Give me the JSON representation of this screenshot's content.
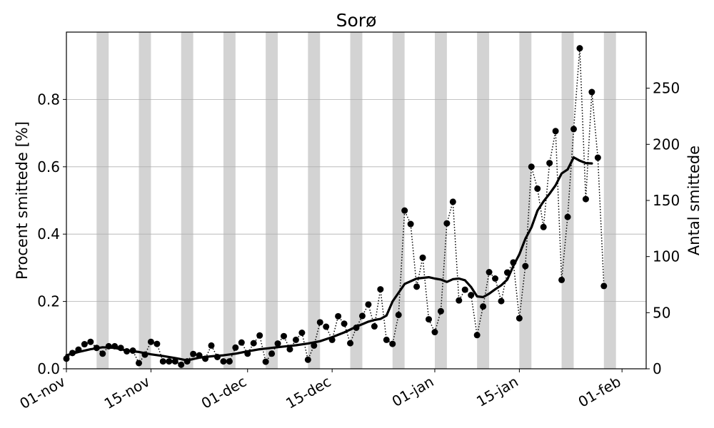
{
  "chart_data": {
    "type": "line",
    "title": "Sorø",
    "ylabel": "Procent smittede [%]",
    "y2label": "Antal smittede",
    "x_start": "2020-11-01",
    "x_end": "2021-02-05",
    "ylim": [
      0,
      1.0
    ],
    "y2lim": [
      0,
      300
    ],
    "y_ticks": [
      "0.0",
      "0.2",
      "0.4",
      "0.6",
      "0.8"
    ],
    "y2_ticks": [
      "0",
      "50",
      "100",
      "150",
      "200",
      "250"
    ],
    "x_ticks": [
      {
        "date": "2020-11-01",
        "label": "01-nov"
      },
      {
        "date": "2020-11-15",
        "label": "15-nov"
      },
      {
        "date": "2020-12-01",
        "label": "01-dec"
      },
      {
        "date": "2020-12-15",
        "label": "15-dec"
      },
      {
        "date": "2021-01-01",
        "label": "01-jan"
      },
      {
        "date": "2021-01-15",
        "label": "15-jan"
      },
      {
        "date": "2021-02-01",
        "label": "01-feb"
      }
    ],
    "weekend_bands": [
      {
        "start": "2020-11-06",
        "end": "2020-11-08"
      },
      {
        "start": "2020-11-13",
        "end": "2020-11-15"
      },
      {
        "start": "2020-11-20",
        "end": "2020-11-22"
      },
      {
        "start": "2020-11-27",
        "end": "2020-11-29"
      },
      {
        "start": "2020-12-04",
        "end": "2020-12-06"
      },
      {
        "start": "2020-12-11",
        "end": "2020-12-13"
      },
      {
        "start": "2020-12-18",
        "end": "2020-12-20"
      },
      {
        "start": "2020-12-25",
        "end": "2020-12-27"
      },
      {
        "start": "2021-01-01",
        "end": "2021-01-03"
      },
      {
        "start": "2021-01-08",
        "end": "2021-01-10"
      },
      {
        "start": "2021-01-15",
        "end": "2021-01-17"
      },
      {
        "start": "2021-01-22",
        "end": "2021-01-24"
      },
      {
        "start": "2021-01-29",
        "end": "2021-01-31"
      },
      {
        "start": "2021-02-05",
        "end": "2021-02-07"
      }
    ],
    "grid": "y",
    "series": [
      {
        "style": "dotted-markers",
        "color": "#000000",
        "x": [
          "2020-11-01",
          "2020-11-02",
          "2020-11-03",
          "2020-11-04",
          "2020-11-05",
          "2020-11-06",
          "2020-11-07",
          "2020-11-08",
          "2020-11-09",
          "2020-11-10",
          "2020-11-11",
          "2020-11-12",
          "2020-11-13",
          "2020-11-14",
          "2020-11-15",
          "2020-11-16",
          "2020-11-17",
          "2020-11-18",
          "2020-11-19",
          "2020-11-20",
          "2020-11-21",
          "2020-11-22",
          "2020-11-23",
          "2020-11-24",
          "2020-11-25",
          "2020-11-26",
          "2020-11-27",
          "2020-11-28",
          "2020-11-29",
          "2020-11-30",
          "2020-12-01",
          "2020-12-02",
          "2020-12-03",
          "2020-12-04",
          "2020-12-05",
          "2020-12-06",
          "2020-12-07",
          "2020-12-08",
          "2020-12-09",
          "2020-12-10",
          "2020-12-11",
          "2020-12-12",
          "2020-12-13",
          "2020-12-14",
          "2020-12-15",
          "2020-12-16",
          "2020-12-17",
          "2020-12-18",
          "2020-12-19",
          "2020-12-20",
          "2020-12-21",
          "2020-12-22",
          "2020-12-23",
          "2020-12-24",
          "2020-12-25",
          "2020-12-26",
          "2020-12-27",
          "2020-12-28",
          "2020-12-29",
          "2020-12-30",
          "2020-12-31",
          "2021-01-01",
          "2021-01-02",
          "2021-01-03",
          "2021-01-04",
          "2021-01-05",
          "2021-01-06",
          "2021-01-07",
          "2021-01-08",
          "2021-01-09",
          "2021-01-10",
          "2021-01-11",
          "2021-01-12",
          "2021-01-13",
          "2021-01-14",
          "2021-01-15",
          "2021-01-16",
          "2021-01-17",
          "2021-01-18",
          "2021-01-19",
          "2021-01-20",
          "2021-01-21",
          "2021-01-22",
          "2021-01-23",
          "2021-01-24",
          "2021-01-25",
          "2021-01-26",
          "2021-01-27",
          "2021-01-28",
          "2021-01-29"
        ],
        "values": [
          0.03,
          0.047,
          0.057,
          0.073,
          0.08,
          0.062,
          0.045,
          0.067,
          0.067,
          0.062,
          0.052,
          0.054,
          0.017,
          0.042,
          0.08,
          0.074,
          0.022,
          0.022,
          0.022,
          0.012,
          0.022,
          0.044,
          0.04,
          0.03,
          0.069,
          0.035,
          0.022,
          0.022,
          0.063,
          0.078,
          0.045,
          0.076,
          0.099,
          0.021,
          0.045,
          0.075,
          0.097,
          0.058,
          0.086,
          0.107,
          0.027,
          0.069,
          0.138,
          0.125,
          0.086,
          0.156,
          0.134,
          0.076,
          0.122,
          0.157,
          0.191,
          0.126,
          0.236,
          0.086,
          0.074,
          0.16,
          0.47,
          0.43,
          0.244,
          0.33,
          0.147,
          0.109,
          0.171,
          0.432,
          0.496,
          0.203,
          0.235,
          0.219,
          0.1,
          0.185,
          0.287,
          0.268,
          0.201,
          0.286,
          0.316,
          0.15,
          0.305,
          0.6,
          0.535,
          0.421,
          0.611,
          0.706,
          0.264,
          0.451,
          0.712,
          0.952,
          0.504,
          0.822,
          0.627,
          0.246
        ]
      },
      {
        "style": "solid-thick",
        "color": "#000000",
        "x": [
          "2020-11-01",
          "2020-11-03",
          "2020-11-05",
          "2020-11-07",
          "2020-11-09",
          "2020-11-11",
          "2020-11-13",
          "2020-11-15",
          "2020-11-17",
          "2020-11-19",
          "2020-11-21",
          "2020-11-23",
          "2020-11-25",
          "2020-11-27",
          "2020-11-29",
          "2020-12-01",
          "2020-12-03",
          "2020-12-05",
          "2020-12-07",
          "2020-12-09",
          "2020-12-11",
          "2020-12-13",
          "2020-12-15",
          "2020-12-17",
          "2020-12-19",
          "2020-12-21",
          "2020-12-22",
          "2020-12-23",
          "2020-12-24",
          "2020-12-25",
          "2020-12-27",
          "2020-12-29",
          "2020-12-31",
          "2021-01-01",
          "2021-01-02",
          "2021-01-03",
          "2021-01-04",
          "2021-01-05",
          "2021-01-06",
          "2021-01-07",
          "2021-01-08",
          "2021-01-09",
          "2021-01-10",
          "2021-01-11",
          "2021-01-12",
          "2021-01-13",
          "2021-01-14",
          "2021-01-15",
          "2021-01-16",
          "2021-01-17",
          "2021-01-18",
          "2021-01-19",
          "2021-01-20",
          "2021-01-21",
          "2021-01-22",
          "2021-01-23",
          "2021-01-24",
          "2021-01-25",
          "2021-01-26",
          "2021-01-27"
        ],
        "values": [
          0.04,
          0.05,
          0.058,
          0.064,
          0.062,
          0.054,
          0.05,
          0.043,
          0.038,
          0.032,
          0.025,
          0.033,
          0.037,
          0.04,
          0.045,
          0.052,
          0.058,
          0.062,
          0.066,
          0.07,
          0.075,
          0.082,
          0.094,
          0.108,
          0.125,
          0.14,
          0.145,
          0.148,
          0.158,
          0.2,
          0.252,
          0.268,
          0.272,
          0.268,
          0.265,
          0.258,
          0.266,
          0.268,
          0.263,
          0.243,
          0.215,
          0.213,
          0.223,
          0.236,
          0.248,
          0.265,
          0.305,
          0.34,
          0.386,
          0.42,
          0.47,
          0.497,
          0.52,
          0.545,
          0.58,
          0.592,
          0.628,
          0.618,
          0.611,
          0.61
        ]
      }
    ]
  }
}
